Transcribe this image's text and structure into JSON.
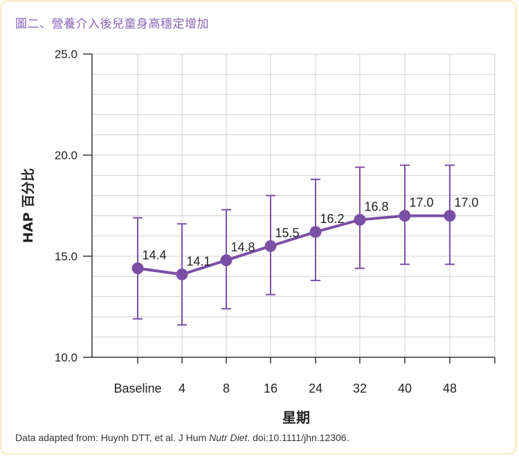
{
  "title": "圖二、營養介入後兒童身高穩定增加",
  "footer": {
    "prefix": "Data adapted from: Huynh DTT, et al. J Hum ",
    "journal": "Nutr Diet",
    "suffix": ". doi:10.1111/jhn.12306."
  },
  "colors": {
    "accent": "#7b4fa6",
    "grid": "#cfcfcf",
    "border": "#f3d27a",
    "title": "#8a63b5"
  },
  "chart_data": {
    "type": "line",
    "xlabel": "星期",
    "ylabel": "HAP 百分比",
    "categories": [
      "Baseline",
      "4",
      "8",
      "16",
      "24",
      "32",
      "40",
      "48"
    ],
    "ylim": [
      10,
      25
    ],
    "yticks": [
      "10.0",
      "15.0",
      "20.0",
      "25.0"
    ],
    "grid": true,
    "series": [
      {
        "values": [
          14.4,
          14.1,
          14.8,
          15.5,
          16.2,
          16.8,
          17.0,
          17.0
        ],
        "labels": [
          "14.4",
          "14.1",
          "14.8",
          "15.5",
          "16.2",
          "16.8",
          "17.0",
          "17.0"
        ],
        "error_low": [
          11.9,
          11.6,
          12.4,
          13.1,
          13.8,
          14.4,
          14.6,
          14.6
        ],
        "error_high": [
          16.9,
          16.6,
          17.3,
          18.0,
          18.8,
          19.4,
          19.5,
          19.5
        ]
      }
    ]
  }
}
